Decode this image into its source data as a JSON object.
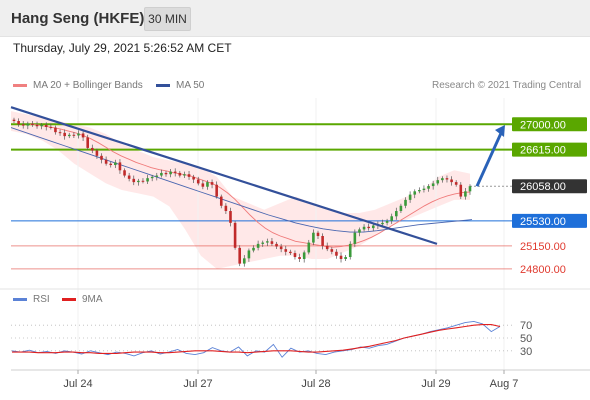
{
  "header": {
    "title": "Hang Seng (HKFE)",
    "interval": "30 MIN"
  },
  "datetime": "Thursday, July 29, 2021 5:26:52 AM CET",
  "legend": {
    "bb_label": "MA 20 + Bollinger Bands",
    "ma50_label": "MA 50",
    "copyright": "Research © 2021 Trading Central"
  },
  "rsi_legend": {
    "rsi_label": "RSI",
    "ma_label": "9MA"
  },
  "colors": {
    "green_level": "#5aa700",
    "blue_level": "#1e6fd9",
    "red_level": "#e03a2f",
    "current_price": "#333333",
    "trendline": "#33509a",
    "arrow": "#2a62b8",
    "bb_fill": "#ffd6d6",
    "rsi_line": "#5b82d6",
    "rsi_ma_line": "#e02020",
    "candle_up": "#3a9a3a",
    "candle_down": "#c02a2a"
  },
  "chart_data": [
    {
      "type": "candlestick",
      "title": "Hang Seng (HKFE)",
      "interval": "30 MIN",
      "x_ticks": [
        "Jul 24",
        "Jul 27",
        "Jul 28",
        "Jul 29",
        "Aug 7"
      ],
      "ylim": [
        24600,
        27400
      ],
      "price_levels": [
        {
          "label": "27000.00",
          "value": 27000,
          "kind": "resistance",
          "color": "green"
        },
        {
          "label": "26615.00",
          "value": 26615,
          "kind": "resistance",
          "color": "green"
        },
        {
          "label": "26058.00",
          "value": 26058,
          "kind": "last",
          "color": "dark"
        },
        {
          "label": "25530.00",
          "value": 25530,
          "kind": "pivot",
          "color": "blue"
        },
        {
          "label": "25150.00",
          "value": 25150,
          "kind": "support",
          "color": "red"
        },
        {
          "label": "24800.00",
          "value": 24800,
          "kind": "support",
          "color": "red"
        }
      ],
      "close_series": [
        27050,
        27000,
        26980,
        27010,
        26990,
        26970,
        26990,
        26960,
        26950,
        26880,
        26870,
        26820,
        26840,
        26830,
        26860,
        26800,
        26640,
        26600,
        26520,
        26460,
        26400,
        26380,
        26420,
        26300,
        26220,
        26170,
        26120,
        26140,
        26130,
        26180,
        26200,
        26220,
        26260,
        26240,
        26280,
        26260,
        26220,
        26240,
        26200,
        26160,
        26100,
        26050,
        26120,
        26080,
        25900,
        25760,
        25680,
        25500,
        25120,
        24880,
        24960,
        25080,
        25120,
        25180,
        25200,
        25220,
        25180,
        25140,
        25100,
        25060,
        25040,
        24980,
        24950,
        25050,
        25200,
        25350,
        25300,
        25150,
        25100,
        25060,
        25000,
        24950,
        24980,
        25180,
        25350,
        25400,
        25440,
        25420,
        25460,
        25480,
        25500,
        25530,
        25600,
        25680,
        25760,
        25850,
        25930,
        25980,
        26000,
        26020,
        26060,
        26100,
        26150,
        26180,
        26160,
        26120,
        26080,
        25900,
        25980,
        26058
      ],
      "ma20_series": [
        27000,
        26990,
        26970,
        26950,
        26930,
        26900,
        26870,
        26830,
        26780,
        26720,
        26650,
        26580,
        26520,
        26470,
        26420,
        26380,
        26340,
        26310,
        26290,
        26260,
        26240,
        26220,
        26180,
        26140,
        26100,
        26040,
        25960,
        25860,
        25740,
        25620,
        25510,
        25420,
        25350,
        25300,
        25260,
        25220,
        25200,
        25180,
        25160,
        25140,
        25130,
        25140,
        25160,
        25190,
        25230,
        25280,
        25340,
        25410,
        25480,
        25550,
        25620,
        25690,
        25760,
        25820,
        25870,
        25910,
        25940,
        25960,
        25970
      ],
      "ma50_series": [
        26950,
        26880,
        26810,
        26740,
        26670,
        26600,
        26530,
        26460,
        26390,
        26320,
        26250,
        26180,
        26110,
        26040,
        25970,
        25900,
        25830,
        25760,
        25690,
        25620,
        25560,
        25500,
        25450,
        25410,
        25380,
        25360,
        25360,
        25380,
        25410,
        25440,
        25470,
        25490,
        25510,
        25530,
        25550
      ],
      "bb_upper": [
        27200,
        27150,
        27100,
        27050,
        27000,
        26950,
        26850,
        26700,
        26600,
        26500,
        26450,
        26400,
        26350,
        26200,
        25900,
        25800,
        25700,
        25800,
        25900,
        25800,
        25700,
        25650,
        25650,
        25700,
        25800,
        25900,
        26000,
        26200,
        26300,
        26250
      ],
      "bb_lower": [
        26900,
        26850,
        26750,
        26600,
        26400,
        26250,
        26100,
        26000,
        25950,
        25900,
        25750,
        25400,
        25000,
        24800,
        24850,
        24900,
        24950,
        25000,
        25000,
        24950,
        24950,
        25050,
        25150,
        25300,
        25450,
        25550,
        25650,
        25750,
        25850,
        25850
      ],
      "trendlines": [
        {
          "from": {
            "time": "Jul 23",
            "value": 27260
          },
          "to": {
            "time": "Jul 29",
            "value": 25180
          }
        }
      ],
      "projection": {
        "from": {
          "time": "Jul 29",
          "value": 26058
        },
        "to": {
          "time": "Jul 29",
          "value": 26980
        }
      },
      "legend": [
        "MA 20 + Bollinger Bands",
        "MA 50"
      ]
    },
    {
      "type": "line",
      "title": "RSI",
      "ylim": [
        0,
        100
      ],
      "y_ticks": [
        70,
        50,
        30
      ],
      "series": [
        {
          "name": "RSI",
          "values": [
            30,
            28,
            31,
            27,
            29,
            26,
            30,
            28,
            25,
            30,
            27,
            24,
            28,
            26,
            22,
            27,
            30,
            25,
            28,
            32,
            26,
            24,
            27,
            35,
            30,
            28,
            36,
            22,
            30,
            28,
            40,
            20,
            34,
            28,
            30,
            26,
            24,
            28,
            30,
            32,
            36,
            34,
            38,
            40,
            45,
            50,
            53,
            56,
            60,
            63,
            66,
            70,
            74,
            76,
            72,
            60,
            68
          ]
        },
        {
          "name": "9MA",
          "values": [
            28,
            28,
            28,
            27,
            27,
            27,
            28,
            28,
            27,
            27,
            26,
            26,
            26,
            27,
            28,
            28,
            28,
            27,
            27,
            28,
            29,
            30,
            30,
            30,
            29,
            28,
            28,
            27,
            28,
            29,
            30,
            30,
            30,
            29,
            28,
            28,
            29,
            30,
            31,
            33,
            35,
            37,
            40,
            43,
            46,
            50,
            53,
            56,
            59,
            62,
            64,
            66,
            68,
            70,
            71,
            71,
            68
          ]
        }
      ]
    }
  ]
}
